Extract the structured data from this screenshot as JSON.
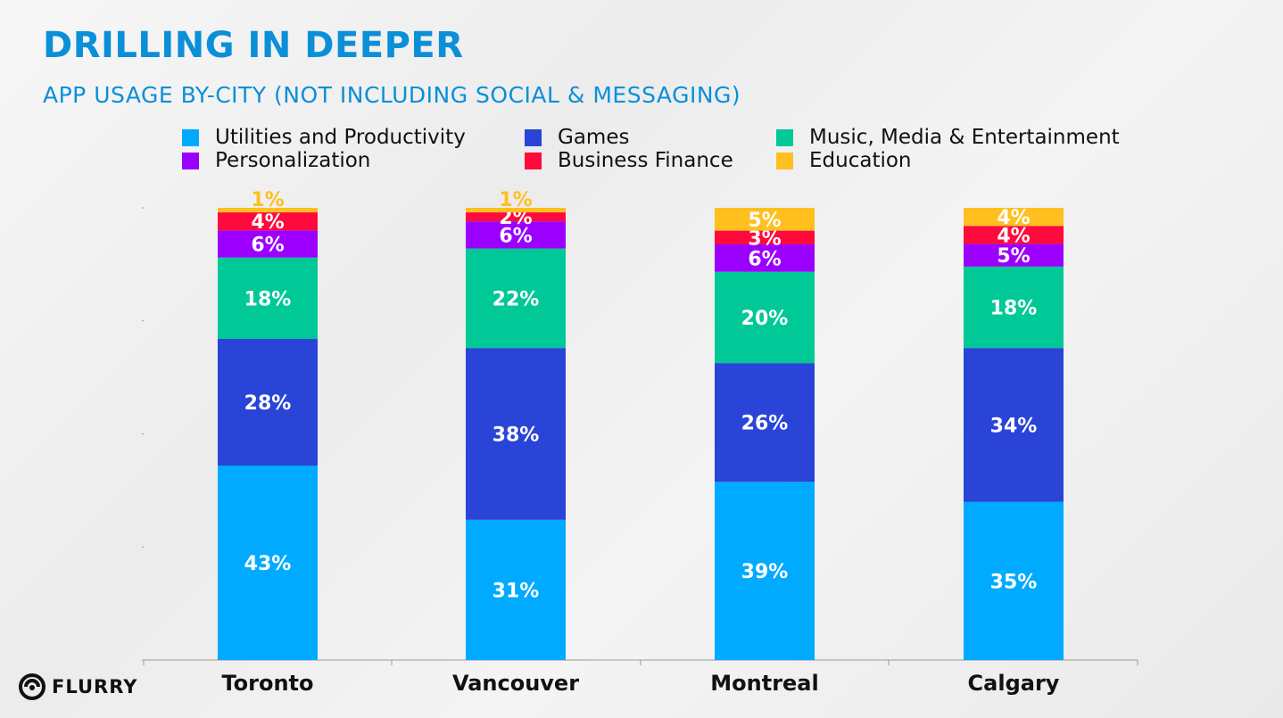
{
  "header": {
    "title": "DRILLING IN DEEPER",
    "subtitle": "APP USAGE BY-CITY (NOT INCLUDING SOCIAL & MESSAGING)"
  },
  "logo": {
    "text": "FLURRY",
    "icon": "flurry-logo-icon"
  },
  "chart_data": {
    "type": "bar",
    "stacked": true,
    "categories": [
      "Toronto",
      "Vancouver",
      "Montreal",
      "Calgary"
    ],
    "series": [
      {
        "name": "Utilities and Productivity",
        "color": "#00aaff",
        "values": [
          43,
          31,
          39,
          35
        ],
        "labels": [
          "43%",
          "31%",
          "39%",
          "35%"
        ]
      },
      {
        "name": "Games",
        "color": "#2a44d8",
        "values": [
          28,
          38,
          26,
          34
        ],
        "labels": [
          "28%",
          "38%",
          "26%",
          "34%"
        ]
      },
      {
        "name": "Music, Media & Entertainment",
        "color": "#00c896",
        "values": [
          18,
          22,
          20,
          18
        ],
        "labels": [
          "18%",
          "22%",
          "20%",
          "18%"
        ]
      },
      {
        "name": "Personalization",
        "color": "#9b00ff",
        "values": [
          6,
          6,
          6,
          5
        ],
        "labels": [
          "6%",
          "6%",
          "6%",
          "5%"
        ]
      },
      {
        "name": "Business Finance",
        "color": "#ff0a3c",
        "values": [
          4,
          2,
          3,
          4
        ],
        "labels": [
          "4%",
          "2%",
          "3%",
          "4%"
        ]
      },
      {
        "name": "Education",
        "color": "#ffbf1f",
        "values": [
          1,
          1,
          5,
          4
        ],
        "labels": [
          "1%",
          "1%",
          "5%",
          "4%"
        ]
      }
    ],
    "ylim": [
      0,
      100
    ],
    "legend_position": "top",
    "grid": false
  }
}
